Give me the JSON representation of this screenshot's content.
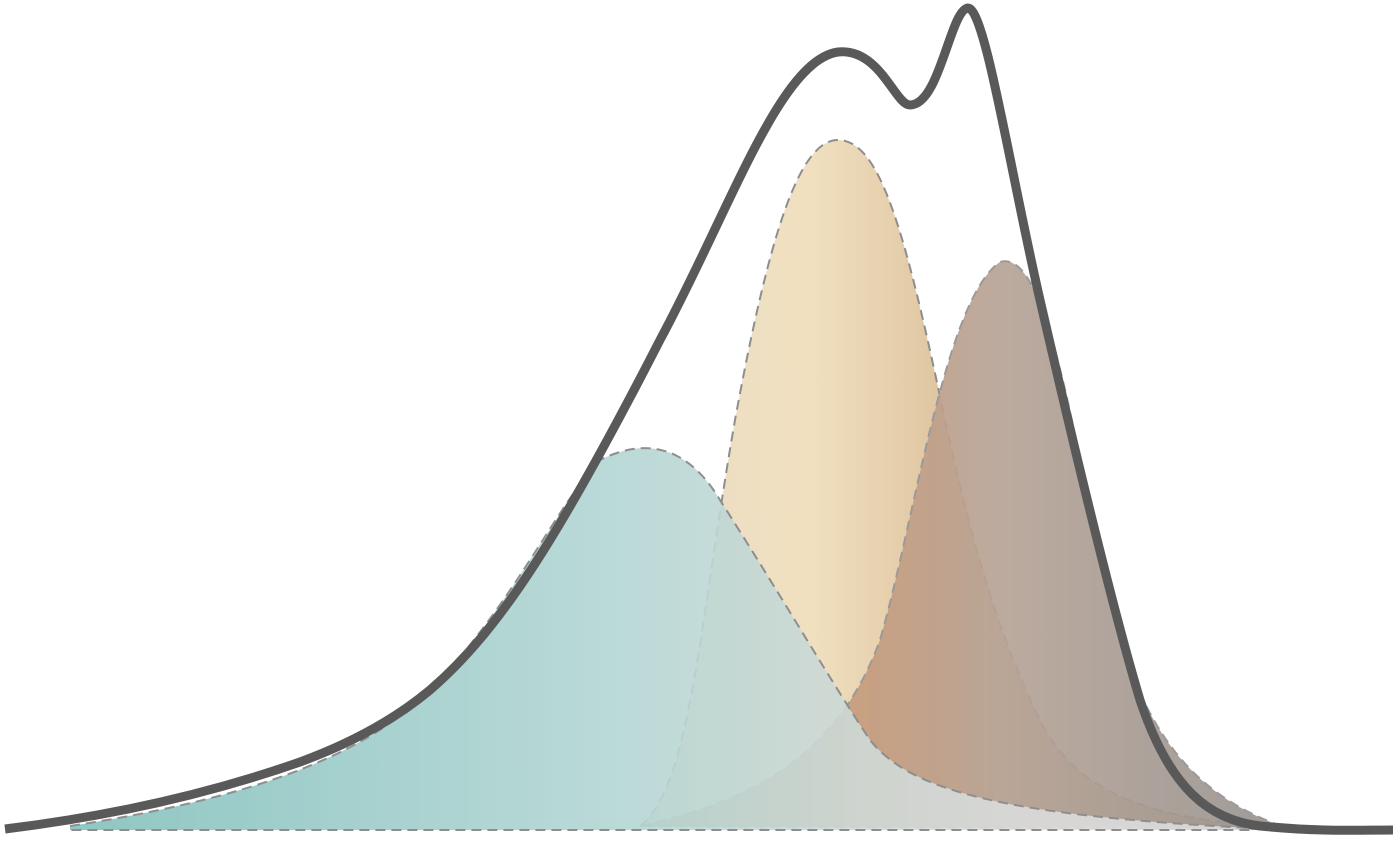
{
  "diagram": {
    "kind": "mixture-of-densities",
    "baseline": "horizontal",
    "components": [
      {
        "name": "component-teal",
        "relative_peak": 0.45,
        "colors": {
          "left": "#8ec6c2",
          "mid": "#b3d6d4",
          "right": "#d2d9d6"
        },
        "outline": "dashed"
      },
      {
        "name": "component-sand",
        "relative_peak": 0.83,
        "colors": {
          "left": "#ead7b4",
          "mid": "#eeddbb",
          "right": "#dfc39a"
        },
        "outline": "dashed"
      },
      {
        "name": "component-taupe",
        "relative_peak": 0.68,
        "colors": {
          "left": "#c69a7c",
          "mid": "#b3a194",
          "right": "#9d9692"
        },
        "outline": "dashed"
      }
    ],
    "envelope": {
      "color": "#595959",
      "style": "solid"
    }
  }
}
